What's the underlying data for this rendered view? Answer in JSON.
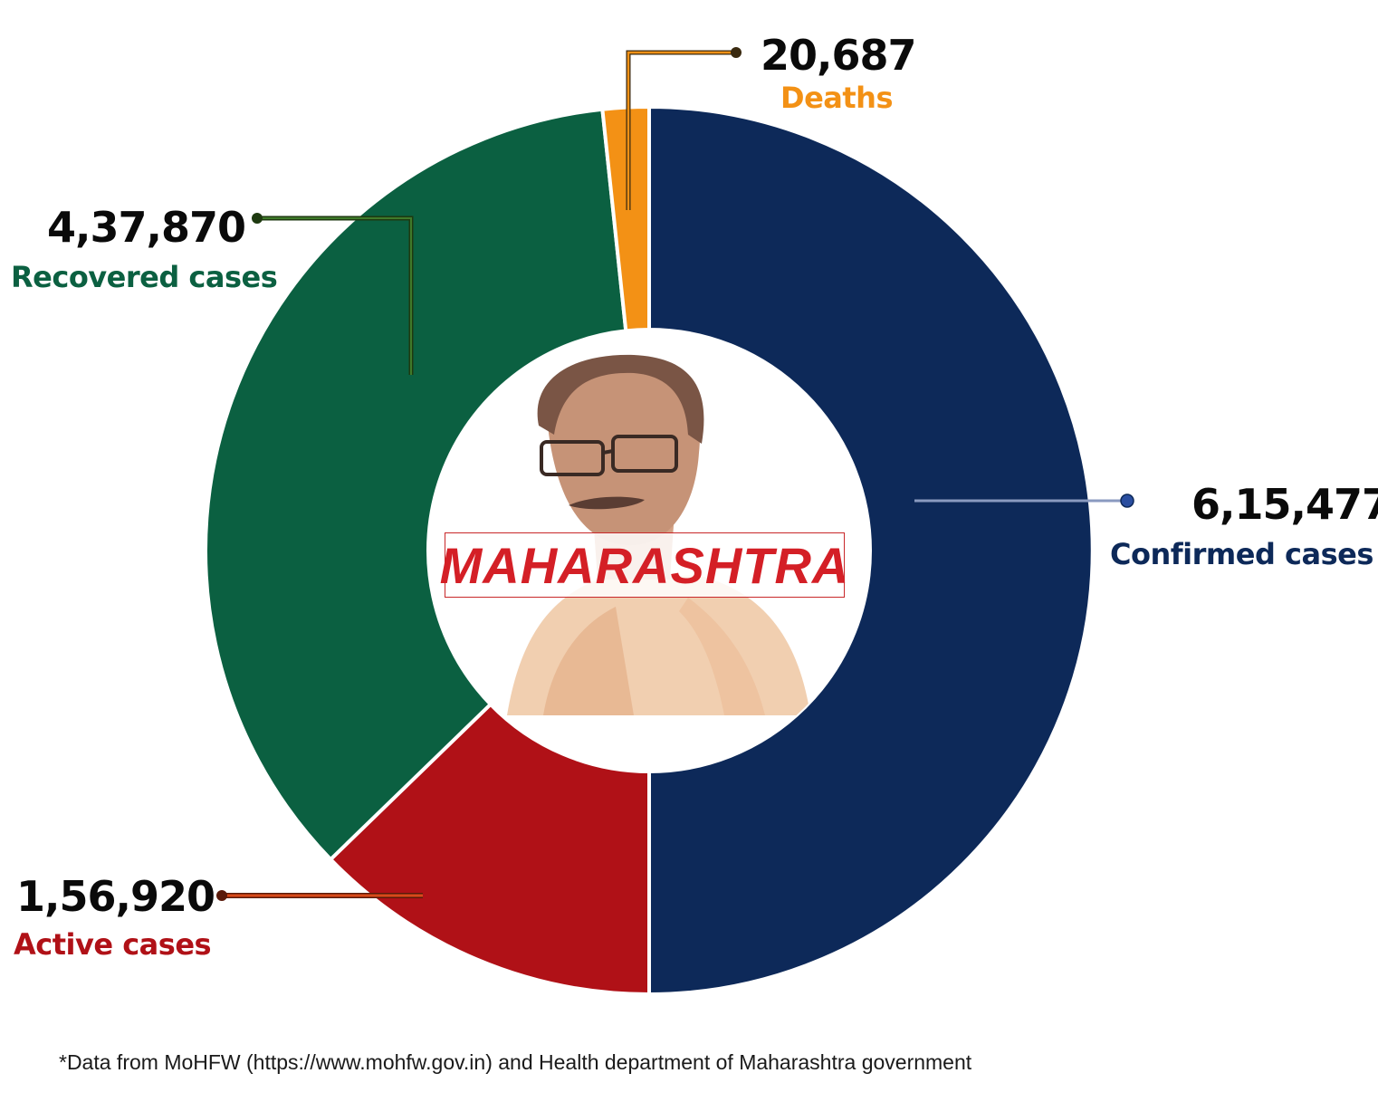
{
  "chart_data": {
    "type": "pie",
    "donut": true,
    "slices": [
      {
        "label": "Confirmed cases",
        "value": 615477,
        "display": "6,15,477",
        "color": "#0d2959"
      },
      {
        "label": "Active cases",
        "value": 156920,
        "display": "1,56,920",
        "color": "#b01117"
      },
      {
        "label": "Recovered cases",
        "value": 437870,
        "display": "4,37,870",
        "color": "#0b6041"
      },
      {
        "label": "Deaths",
        "value": 20687,
        "display": "20,687",
        "color": "#f39115"
      }
    ],
    "center_label": "MAHARASHTRA",
    "footnote": "*Data from MoHFW (https://www.mohfw.gov.in) and Health department of Maharashtra government"
  },
  "colors": {
    "confirmed": "#0d2959",
    "active": "#b01117",
    "recovered": "#0b6041",
    "deaths": "#f39115",
    "center_text": "#d41f26"
  }
}
